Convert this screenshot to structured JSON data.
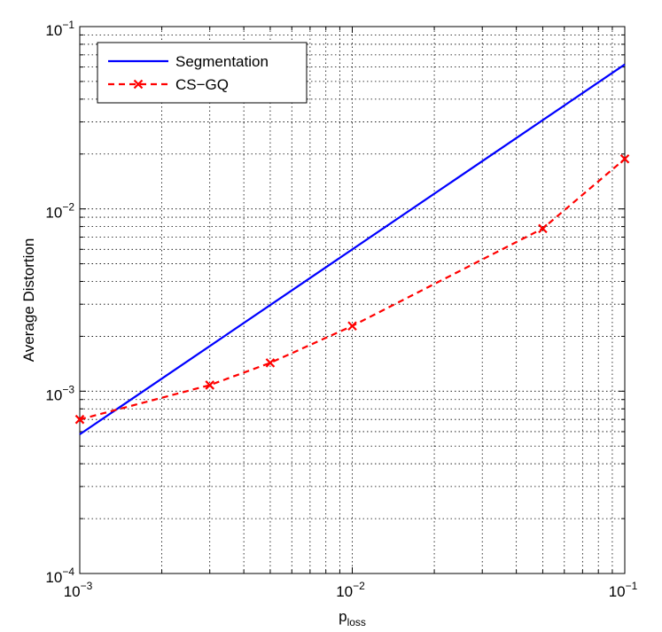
{
  "chart_data": {
    "type": "line",
    "x_scale": "log",
    "y_scale": "log",
    "xlim": [
      0.001,
      0.1
    ],
    "ylim": [
      0.0001,
      0.1
    ],
    "grid": true,
    "legend_position": "top-left",
    "xlabel": {
      "main": "p",
      "subscript": "loss"
    },
    "ylabel": "Average Distortion",
    "x_ticks": [
      {
        "base": "10",
        "exp": "−3",
        "value": 0.001
      },
      {
        "base": "10",
        "exp": "−2",
        "value": 0.01
      },
      {
        "base": "10",
        "exp": "−1",
        "value": 0.1
      }
    ],
    "y_ticks": [
      {
        "base": "10",
        "exp": "−4",
        "value": 0.0001
      },
      {
        "base": "10",
        "exp": "−3",
        "value": 0.001
      },
      {
        "base": "10",
        "exp": "−2",
        "value": 0.01
      },
      {
        "base": "10",
        "exp": "−1",
        "value": 0.1
      }
    ],
    "series": [
      {
        "name": "Segmentation",
        "color": "#0000ff",
        "style": "solid",
        "marker": "none",
        "x": [
          0.001,
          0.1
        ],
        "y": [
          0.00058,
          0.062
        ]
      },
      {
        "name": "CS−GQ",
        "color": "#ff0000",
        "style": "dashed",
        "marker": "x",
        "x": [
          0.001,
          0.003,
          0.005,
          0.01,
          0.05,
          0.1
        ],
        "y": [
          0.0007,
          0.00108,
          0.00143,
          0.00228,
          0.0078,
          0.0188
        ]
      }
    ]
  }
}
